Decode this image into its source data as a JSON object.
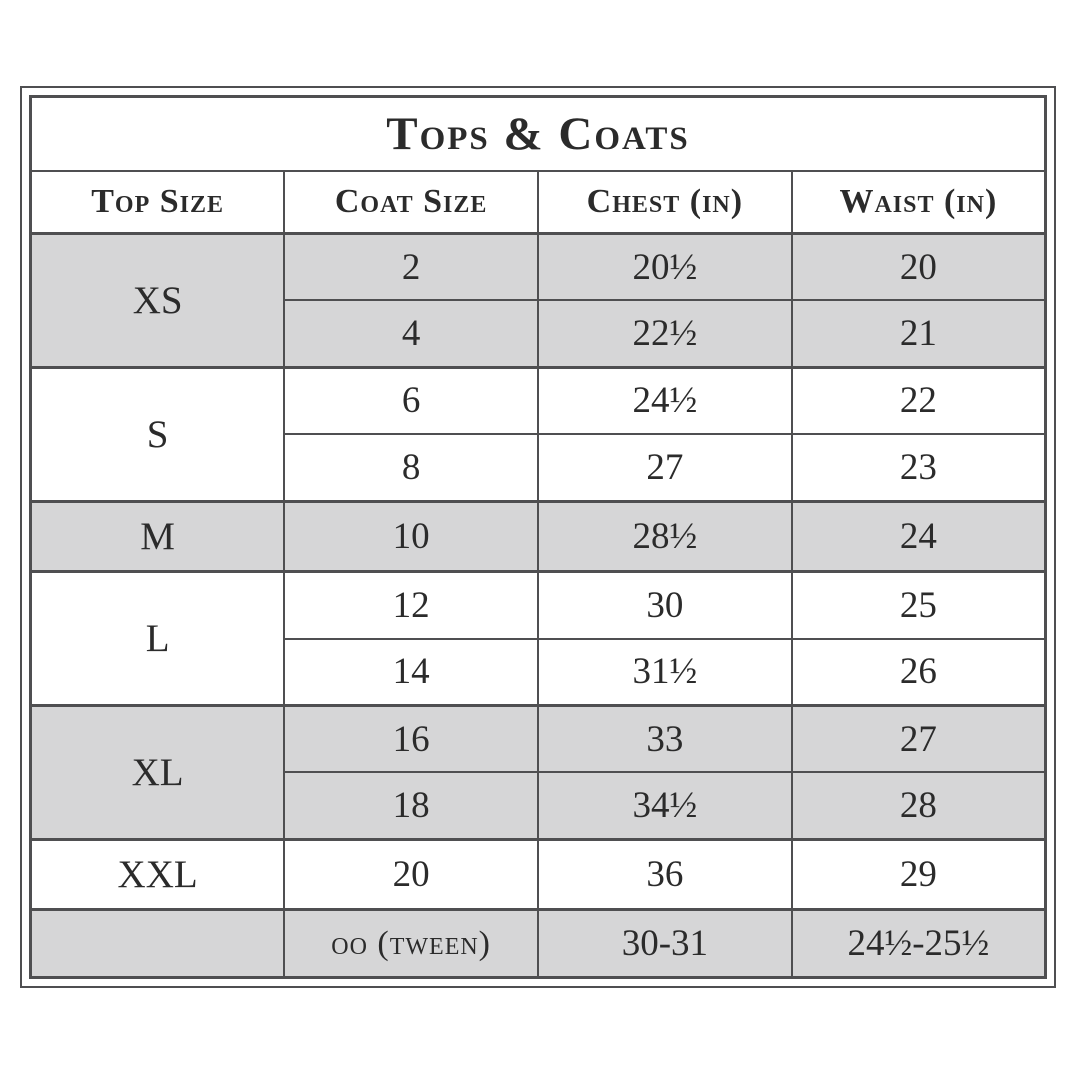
{
  "table": {
    "title": "Tops & Coats",
    "headers": [
      "Top Size",
      "Coat Size",
      "Chest (in)",
      "Waist (in)"
    ],
    "groups": [
      {
        "top_size": "XS",
        "shaded": true,
        "rows": [
          [
            "2",
            "20½",
            "20"
          ],
          [
            "4",
            "22½",
            "21"
          ]
        ]
      },
      {
        "top_size": "S",
        "shaded": false,
        "rows": [
          [
            "6",
            "24½",
            "22"
          ],
          [
            "8",
            "27",
            "23"
          ]
        ]
      },
      {
        "top_size": "M",
        "shaded": true,
        "rows": [
          [
            "10",
            "28½",
            "24"
          ]
        ]
      },
      {
        "top_size": "L",
        "shaded": false,
        "rows": [
          [
            "12",
            "30",
            "25"
          ],
          [
            "14",
            "31½",
            "26"
          ]
        ]
      },
      {
        "top_size": "XL",
        "shaded": true,
        "rows": [
          [
            "16",
            "33",
            "27"
          ],
          [
            "18",
            "34½",
            "28"
          ]
        ]
      },
      {
        "top_size": "XXL",
        "shaded": false,
        "rows": [
          [
            "20",
            "36",
            "29"
          ]
        ]
      },
      {
        "top_size": "",
        "shaded": true,
        "rows": [
          [
            "oo (tween)",
            "30-31",
            "24½-25½"
          ]
        ]
      }
    ],
    "colors": {
      "shaded_row": "#d6d6d7",
      "border": "#4f4f51",
      "text": "#2b2b2b",
      "background": "#ffffff"
    }
  },
  "chart_data": {
    "type": "table",
    "title": "Tops & Coats",
    "columns": [
      "Top Size",
      "Coat Size",
      "Chest (in)",
      "Waist (in)"
    ],
    "rows": [
      [
        "XS",
        "2",
        "20½",
        "20"
      ],
      [
        "XS",
        "4",
        "22½",
        "21"
      ],
      [
        "S",
        "6",
        "24½",
        "22"
      ],
      [
        "S",
        "8",
        "27",
        "23"
      ],
      [
        "M",
        "10",
        "28½",
        "24"
      ],
      [
        "L",
        "12",
        "30",
        "25"
      ],
      [
        "L",
        "14",
        "31½",
        "26"
      ],
      [
        "XL",
        "16",
        "33",
        "27"
      ],
      [
        "XL",
        "18",
        "34½",
        "28"
      ],
      [
        "XXL",
        "20",
        "36",
        "29"
      ],
      [
        "",
        "oo (tween)",
        "30-31",
        "24½-25½"
      ]
    ],
    "layout_hints": {
      "shaded_groups": [
        "XS",
        "M",
        "XL",
        "tween-row"
      ],
      "merged_first_column_by_group": true,
      "grid": true
    }
  }
}
